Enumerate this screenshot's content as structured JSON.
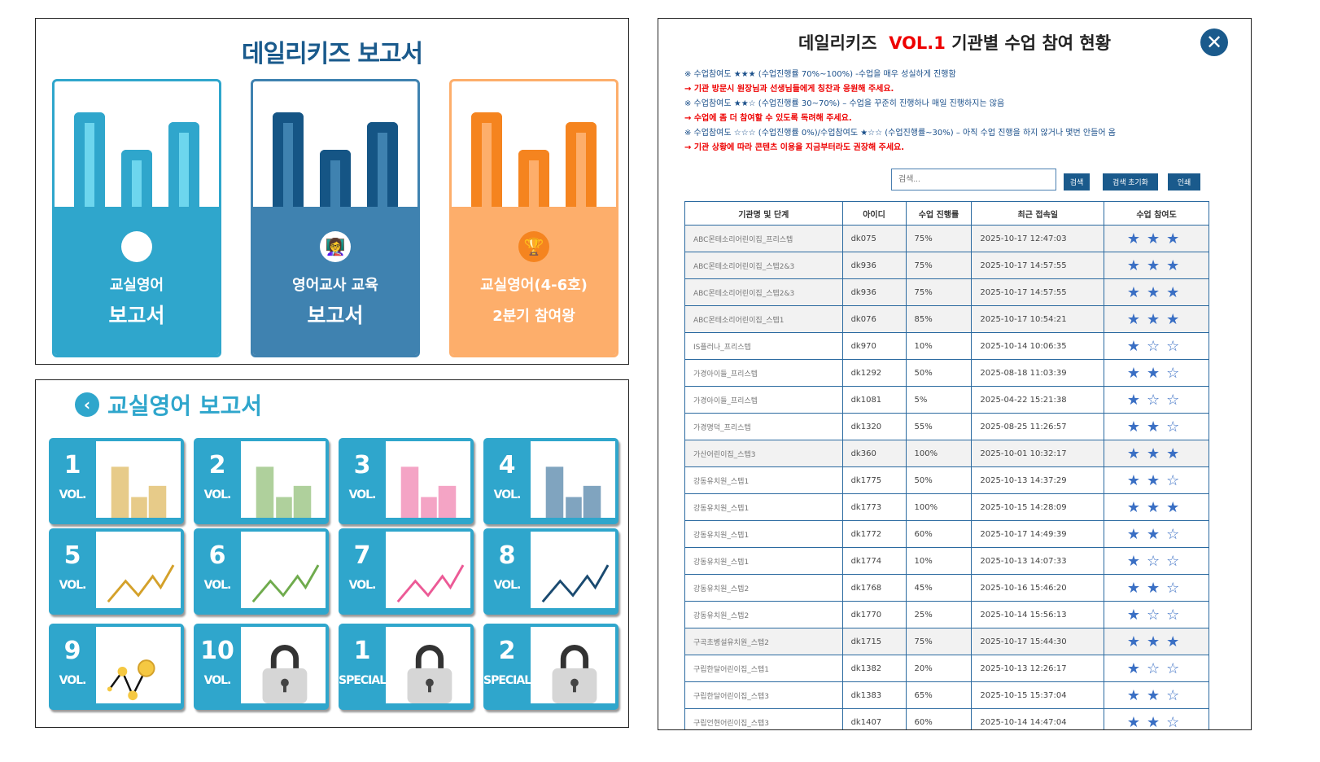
{
  "report_home": {
    "title": "데일리키즈 보고서",
    "cards": [
      {
        "line1": "교실영어",
        "line2": "보고서",
        "icon": "computer-abc-icon",
        "color": "#2fa6cc",
        "bar": "#2fa6cc",
        "fill": "#6dd6ee"
      },
      {
        "line1": "영어교사 교육",
        "line2": "보고서",
        "icon": "teacher-board-icon",
        "color": "#3f82b0",
        "bar": "#155585",
        "fill": "#3f82b0"
      },
      {
        "line1": "교실영어(4-6호)",
        "line2": "2분기 참여왕",
        "icon": "trophy-icon",
        "color": "#fdae6b",
        "bar": "#f5841f",
        "fill": "#fdae6b"
      }
    ]
  },
  "classroom": {
    "title": "교실영어 보고서",
    "tiles": [
      {
        "num": "1",
        "label": "VOL.",
        "icon": "bar-chart-icon",
        "color": "#d4a12a"
      },
      {
        "num": "2",
        "label": "VOL.",
        "icon": "bar-chart-icon",
        "color": "#6fab4d"
      },
      {
        "num": "3",
        "label": "VOL.",
        "icon": "bar-chart-icon",
        "color": "#ec5a96"
      },
      {
        "num": "4",
        "label": "VOL.",
        "icon": "bar-chart-icon",
        "color": "#1a5a8c"
      },
      {
        "num": "5",
        "label": "VOL.",
        "icon": "line-chart-icon",
        "color": "#d4a12a"
      },
      {
        "num": "6",
        "label": "VOL.",
        "icon": "line-chart-icon",
        "color": "#6fab4d"
      },
      {
        "num": "7",
        "label": "VOL.",
        "icon": "line-chart-icon",
        "color": "#ec5a96"
      },
      {
        "num": "8",
        "label": "VOL.",
        "icon": "line-chart-icon",
        "color": "#1a4a70"
      },
      {
        "num": "9",
        "label": "VOL.",
        "icon": "dot-chart-icon",
        "color": "#f5c842"
      },
      {
        "num": "10",
        "label": "VOL.",
        "icon": "lock-icon",
        "color": "#333"
      },
      {
        "num": "1",
        "label": "SPECIAL",
        "icon": "lock-icon",
        "color": "#333"
      },
      {
        "num": "2",
        "label": "SPECIAL",
        "icon": "lock-icon",
        "color": "#333"
      }
    ]
  },
  "status": {
    "title_prefix": "데일리키즈",
    "title_vol": "VOL.1",
    "title_suffix": "기관별 수업 참여 현황",
    "notes": [
      {
        "type": "n",
        "text": "※ 수업참여도 ★★★ (수업진행률 70%~100%) -수업을 매우 성실하게 진행함"
      },
      {
        "type": "r",
        "text": "→ 기관 방문시 원장님과 선생님들에게 칭찬과 응원해 주세요."
      },
      {
        "type": "n",
        "text": "※ 수업참여도 ★★☆ (수업진행률 30~70%) – 수업을 꾸준히 진행하나 매일 진행하지는 않음"
      },
      {
        "type": "r",
        "text": "→ 수업에 좀 더 참여할 수 있도록 독려해 주세요."
      },
      {
        "type": "n",
        "text": "※ 수업참여도 ☆☆☆ (수업진행률 0%)/수업참여도 ★☆☆ (수업진행률~30%) – 아직 수업 진행을 하지 않거나 몇번 안들어 옴"
      },
      {
        "type": "r",
        "text": "→ 기관 상황에 따라 콘텐츠 이용을 지금부터라도 권장해 주세요."
      }
    ],
    "search_placeholder": "검색...",
    "search_btn": "검색",
    "reset_btn": "검색 초기화",
    "print_btn": "인쇄",
    "columns": [
      "기관명 및 단계",
      "아이디",
      "수업 진행률",
      "최근 접속일",
      "수업 참여도"
    ],
    "rows": [
      {
        "name": "ABC몬테소리어린이집_프리스텝",
        "id": "dk075",
        "progress": "75%",
        "date": "2025-10-17 12:47:03",
        "stars": 3
      },
      {
        "name": "ABC몬테소리어린이집_스텝2&3",
        "id": "dk936",
        "progress": "75%",
        "date": "2025-10-17 14:57:55",
        "stars": 3
      },
      {
        "name": "ABC몬테소리어린이집_스텝2&3",
        "id": "dk936",
        "progress": "75%",
        "date": "2025-10-17 14:57:55",
        "stars": 3
      },
      {
        "name": "ABC몬테소리어린이집_스텝1",
        "id": "dk076",
        "progress": "85%",
        "date": "2025-10-17 10:54:21",
        "stars": 3
      },
      {
        "name": "IS플러나_프리스텝",
        "id": "dk970",
        "progress": "10%",
        "date": "2025-10-14 10:06:35",
        "stars": 1
      },
      {
        "name": "가경아이들_프리스텝",
        "id": "dk1292",
        "progress": "50%",
        "date": "2025-08-18 11:03:39",
        "stars": 2
      },
      {
        "name": "가경아이들_프리스텝",
        "id": "dk1081",
        "progress": "5%",
        "date": "2025-04-22 15:21:38",
        "stars": 1
      },
      {
        "name": "가경명덕_프리스텝",
        "id": "dk1320",
        "progress": "55%",
        "date": "2025-08-25 11:26:57",
        "stars": 2
      },
      {
        "name": "가산어린이집_스텝3",
        "id": "dk360",
        "progress": "100%",
        "date": "2025-10-01 10:32:17",
        "stars": 3
      },
      {
        "name": "강동유치원_스텝1",
        "id": "dk1775",
        "progress": "50%",
        "date": "2025-10-13 14:37:29",
        "stars": 2
      },
      {
        "name": "강동유치원_스텝1",
        "id": "dk1773",
        "progress": "100%",
        "date": "2025-10-15 14:28:09",
        "stars": 3
      },
      {
        "name": "강동유치원_스텝1",
        "id": "dk1772",
        "progress": "60%",
        "date": "2025-10-17 14:49:39",
        "stars": 2
      },
      {
        "name": "강동유치원_스텝1",
        "id": "dk1774",
        "progress": "10%",
        "date": "2025-10-13 14:07:33",
        "stars": 1
      },
      {
        "name": "강동유치원_스텝2",
        "id": "dk1768",
        "progress": "45%",
        "date": "2025-10-16 15:46:20",
        "stars": 2
      },
      {
        "name": "강동유치원_스텝2",
        "id": "dk1770",
        "progress": "25%",
        "date": "2025-10-14 15:56:13",
        "stars": 1
      },
      {
        "name": "구곡초병설유치원_스텝2",
        "id": "dk1715",
        "progress": "75%",
        "date": "2025-10-17 15:44:30",
        "stars": 3
      },
      {
        "name": "구립한달어린이집_스텝1",
        "id": "dk1382",
        "progress": "20%",
        "date": "2025-10-13 12:26:17",
        "stars": 1
      },
      {
        "name": "구립한달어린이집_스텝3",
        "id": "dk1383",
        "progress": "65%",
        "date": "2025-10-15 15:37:04",
        "stars": 2
      },
      {
        "name": "구립언현어린이집_스텝3",
        "id": "dk1407",
        "progress": "60%",
        "date": "2025-10-14 14:47:04",
        "stars": 2
      }
    ]
  }
}
